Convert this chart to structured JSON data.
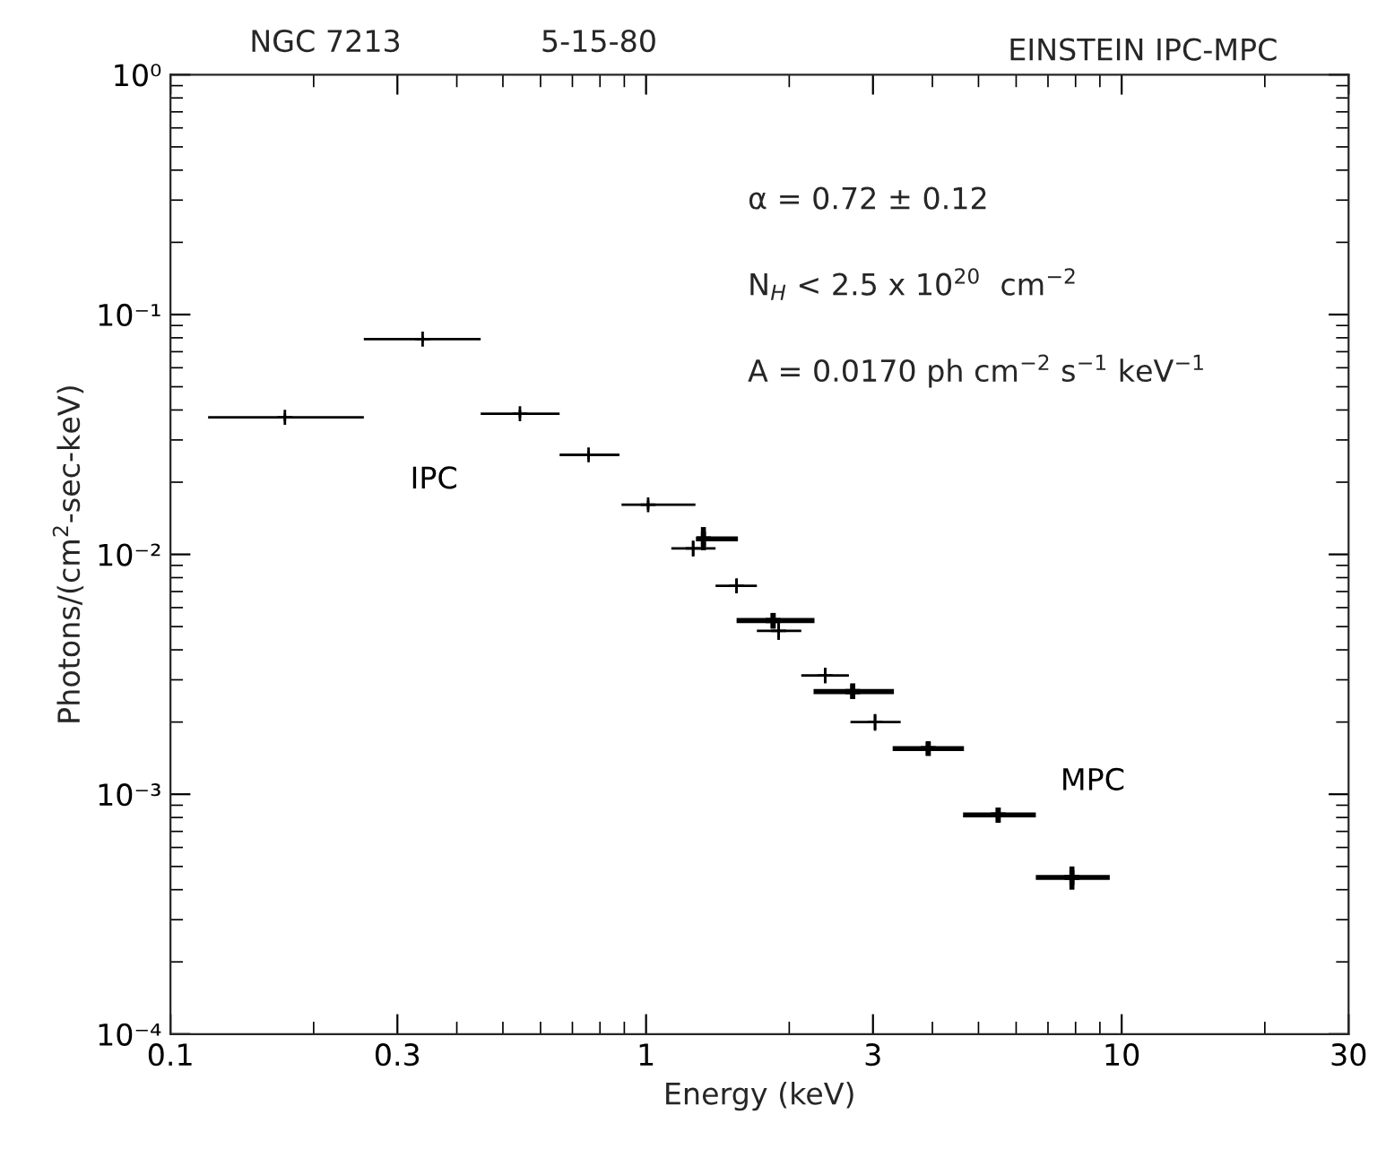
{
  "chart_data": {
    "type": "scatter",
    "title": "NGC 7213",
    "subtitle": "5-15-80",
    "xlabel": "Energy (keV)",
    "ylabel": "Photons/(cm$^{2}$-sec-keV)",
    "log": "xy",
    "marker": "cross",
    "grid": false,
    "legend": false,
    "xlim": [
      0.1,
      30
    ],
    "xticks": [
      0.1,
      0.3,
      1,
      3,
      10,
      30
    ],
    "ylim": [
      0.0001,
      1
    ],
    "yticks": [
      {
        "value": 0.0001,
        "label": "10⁻⁴"
      },
      {
        "value": 0.001,
        "label": "10⁻³"
      },
      {
        "value": 0.01,
        "label": "10⁻²"
      },
      {
        "value": 0.1,
        "label": "10⁻¹"
      },
      {
        "value": 1,
        "label": "10⁰"
      }
    ],
    "annotations": [
      "EINSTEIN IPC-MPC",
      "α = 0.72 ± 0.12",
      "N$_{H}$ < 2.5 x 10$^{20}$  cm$^{−2}$",
      "A = 0.0170 ph cm$^{−2}$ s$^{−1}$ keV$^{−1}$"
    ],
    "series": [
      {
        "name": "IPC",
        "color": "#000000",
        "x": [
          0.174,
          0.339,
          0.543,
          0.757,
          1.01,
          1.256,
          1.55,
          1.9,
          2.38,
          3.03
        ],
        "values": [
          0.0373,
          0.079,
          0.0386,
          0.026,
          0.0161,
          0.0106,
          0.0074,
          0.0048,
          0.00313,
          0.002
        ],
        "xerrors": [
          [
            0.12,
            0.255
          ],
          [
            0.255,
            0.449
          ],
          [
            0.449,
            0.658
          ],
          [
            0.658,
            0.879
          ],
          [
            0.888,
            1.27
          ],
          [
            1.13,
            1.4
          ],
          [
            1.4,
            1.71
          ],
          [
            1.71,
            2.12
          ],
          [
            2.12,
            2.67
          ],
          [
            2.69,
            3.43
          ]
        ],
        "errors": [
          [
            0.036,
            0.0386
          ],
          [
            0.077,
            0.081
          ],
          [
            0.0372,
            0.04
          ],
          [
            0.025,
            0.027
          ],
          [
            0.0154,
            0.0168
          ],
          [
            0.0098,
            0.0114
          ],
          [
            0.0069,
            0.0079
          ],
          [
            0.0044,
            0.0052
          ],
          [
            0.0029,
            0.00337
          ],
          [
            0.00184,
            0.00216
          ]
        ]
      },
      {
        "name": "MPC",
        "color": "#000000",
        "x": [
          1.32,
          1.85,
          2.72,
          3.92,
          5.5,
          7.86
        ],
        "values": [
          0.0116,
          0.0053,
          0.00268,
          0.00155,
          0.00082,
          0.00045
        ],
        "xerrors": [
          [
            1.28,
            1.56
          ],
          [
            1.55,
            2.26
          ],
          [
            2.25,
            3.32
          ],
          [
            3.3,
            4.66
          ],
          [
            4.64,
            6.6
          ],
          [
            6.6,
            9.44
          ]
        ],
        "errors": [
          [
            0.0104,
            0.013
          ],
          [
            0.0049,
            0.0057
          ],
          [
            0.0025,
            0.0029
          ],
          [
            0.00145,
            0.00165
          ],
          [
            0.00076,
            0.00088
          ],
          [
            0.0004,
            0.0005
          ]
        ]
      }
    ]
  }
}
